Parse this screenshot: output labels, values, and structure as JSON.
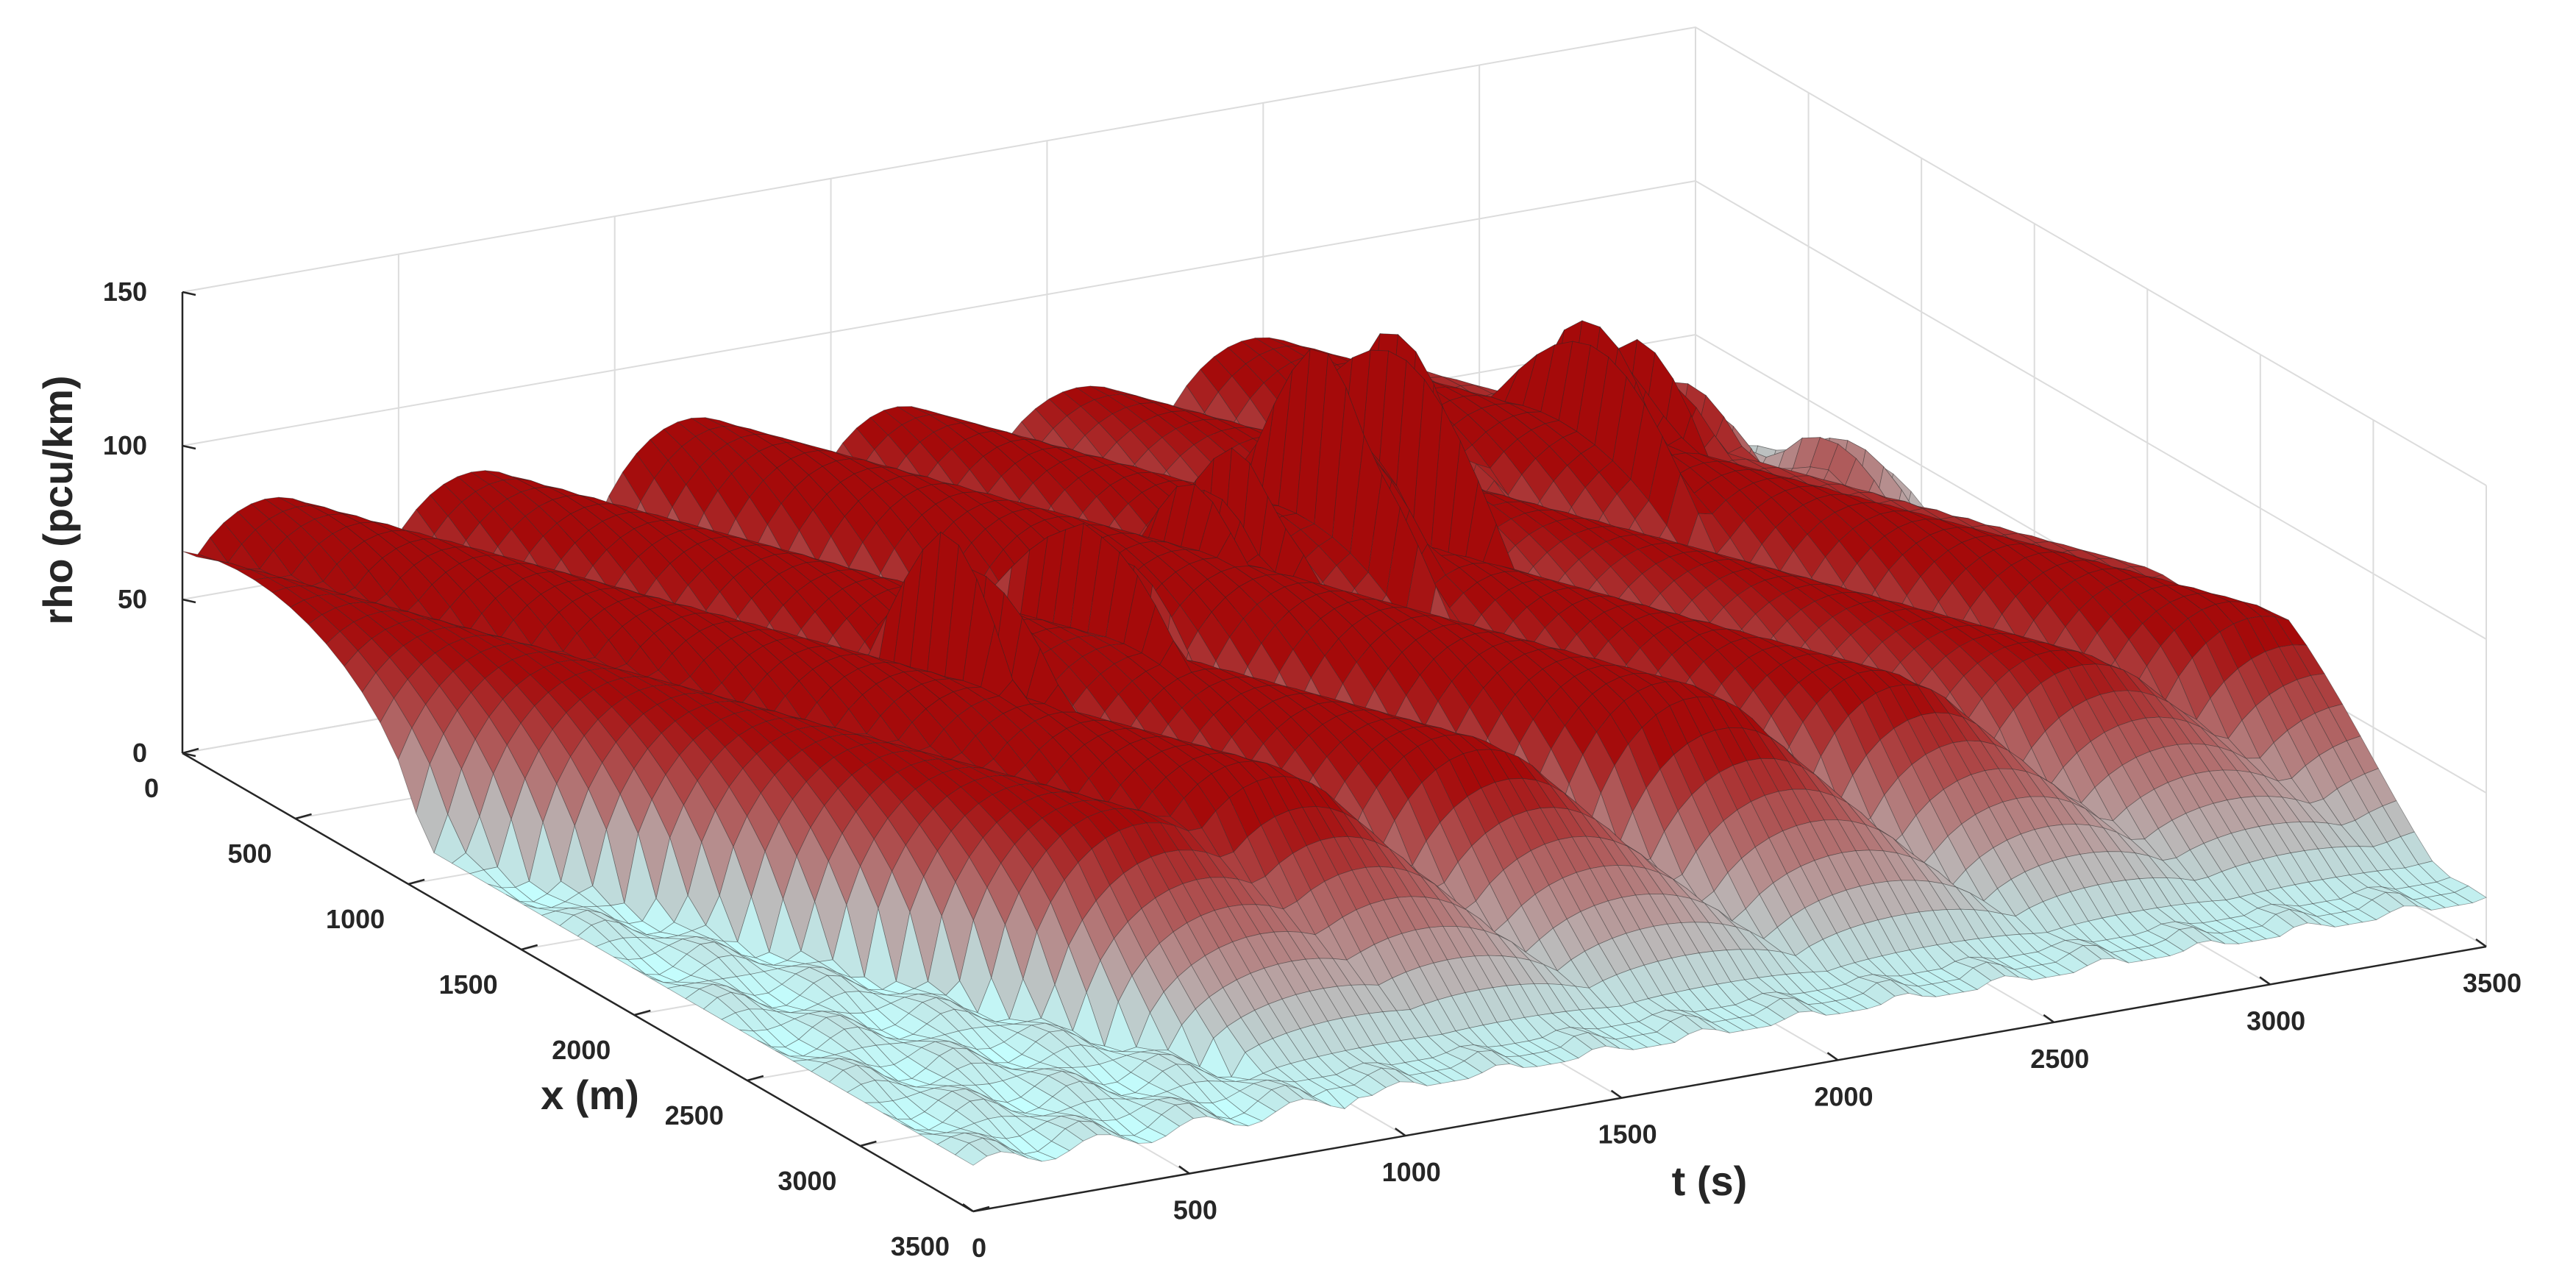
{
  "chart_data": {
    "type": "surface",
    "title": "",
    "xlabel": "t (s)",
    "ylabel": "x (m)",
    "zlabel": "rho (pcu/km)",
    "t_range": [
      0,
      3500
    ],
    "x_range": [
      0,
      3500
    ],
    "z_range": [
      0,
      150
    ],
    "t_ticks": [
      "0",
      "500",
      "1000",
      "1500",
      "2000",
      "2500",
      "3000",
      "3500"
    ],
    "x_ticks": [
      "0",
      "500",
      "1000",
      "1500",
      "2000",
      "2500",
      "3000",
      "3500"
    ],
    "z_ticks": [
      "0",
      "50",
      "100",
      "150"
    ],
    "grid": true,
    "colormap": {
      "low": "#c4ffff",
      "high": "#a50a0a"
    },
    "surface": {
      "base_density": 15,
      "queue_peaks": [
        {
          "t": 900,
          "x": 1700,
          "rho": 125
        },
        {
          "t": 1000,
          "x": 1650,
          "rho": 118
        },
        {
          "t": 1330,
          "x": 1500,
          "rho": 120
        },
        {
          "t": 1680,
          "x": 1300,
          "rho": 112
        },
        {
          "t": 1830,
          "x": 1200,
          "rho": 108
        },
        {
          "t": 2050,
          "x": 1150,
          "rho": 130
        },
        {
          "t": 2150,
          "x": 1100,
          "rho": 125
        },
        {
          "t": 2300,
          "x": 1000,
          "rho": 128
        },
        {
          "t": 2800,
          "x": 900,
          "rho": 118
        },
        {
          "t": 2950,
          "x": 850,
          "rho": 112
        },
        {
          "t": 3300,
          "x": 1000,
          "rho": 70
        }
      ],
      "platoon_ridges": [
        {
          "t_start": 120,
          "t_end": 680,
          "rho": 70
        },
        {
          "t_start": 420,
          "t_end": 980,
          "rho": 78
        },
        {
          "t_start": 900,
          "t_end": 1450,
          "rho": 75
        },
        {
          "t_start": 1400,
          "t_end": 1950,
          "rho": 80
        },
        {
          "t_start": 1900,
          "t_end": 2400,
          "rho": 72
        },
        {
          "t_start": 2300,
          "t_end": 2850,
          "rho": 68
        },
        {
          "t_start": 2700,
          "t_end": 3250,
          "rho": 74
        },
        {
          "t_start": 3050,
          "t_end": 3450,
          "rho": 60
        }
      ]
    }
  }
}
